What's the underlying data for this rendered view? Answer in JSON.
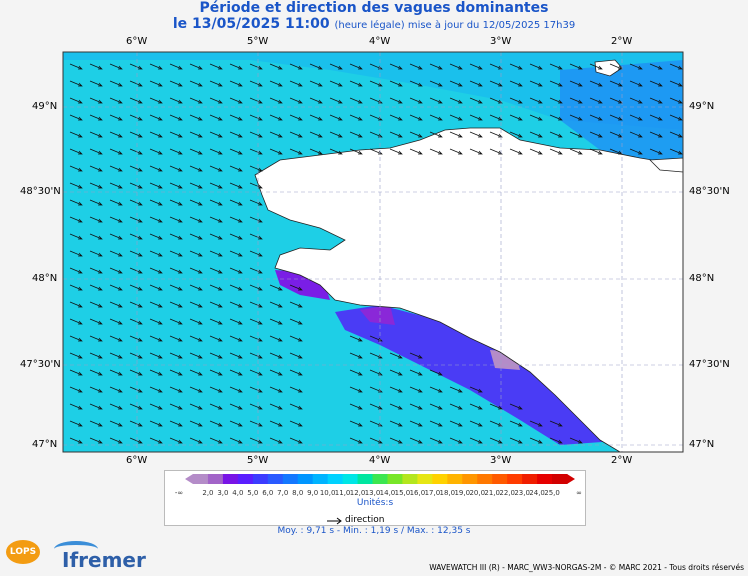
{
  "title": "Période et direction des vagues dominantes",
  "subtitle_date": "le 13/05/2025 11:00",
  "subtitle_note": "(heure légale) mise à jour du 12/05/2025 17h39",
  "lon_ticks": [
    "6°W",
    "5°W",
    "4°W",
    "3°W",
    "2°W"
  ],
  "lat_ticks": [
    "49°N",
    "48°30'N",
    "48°N",
    "47°30'N",
    "47°N"
  ],
  "legend": {
    "labels": [
      "2,0",
      "3,0",
      "4,0",
      "5,0",
      "6,0",
      "7,0",
      "8,0",
      "9,0",
      "10,0",
      "11,0",
      "12,0",
      "13,0",
      "14,0",
      "15,0",
      "16,0",
      "17,0",
      "18,0",
      "19,0",
      "20,0",
      "21,0",
      "22,0",
      "23,0",
      "24,0",
      "25,0"
    ],
    "low_label": "-∞",
    "high_label": "∞",
    "colors": [
      "#b48cc8",
      "#a264c8",
      "#7814e6",
      "#5a1eff",
      "#3c3cff",
      "#2a5aff",
      "#1478ff",
      "#0096ff",
      "#00b4ff",
      "#00d2ff",
      "#00e6e6",
      "#00e6a0",
      "#3ce650",
      "#78e628",
      "#b4e61e",
      "#e6e614",
      "#ffd200",
      "#ffb400",
      "#ff9600",
      "#ff7800",
      "#ff5a00",
      "#ff3c00",
      "#f01e00",
      "#e60000",
      "#d20000"
    ],
    "units": "Unités:s",
    "direction_label": "direction"
  },
  "stats": "Moy. : 9,71 s   -   Min. : 1,19 s / Max. : 12,35 s",
  "footer": "WAVEWATCH III (R) - MARC_WW3-NORGAS-2M - © MARC 2021 - Tous droits réservés",
  "logos": {
    "lops": "LOPS",
    "ifremer": "Ifremer"
  }
}
